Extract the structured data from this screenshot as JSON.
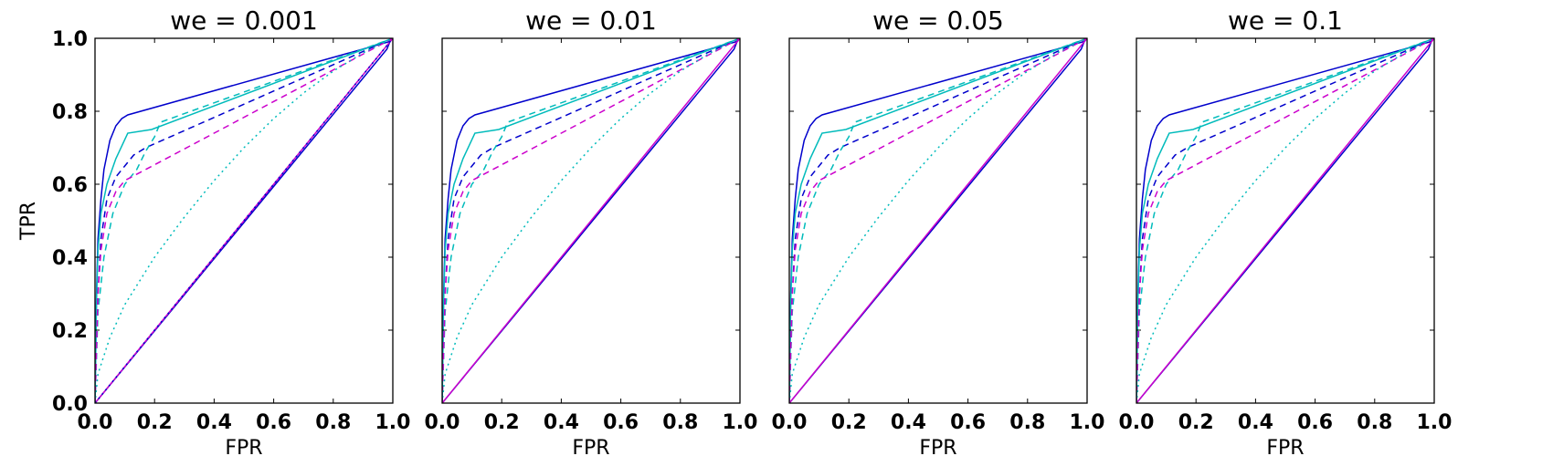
{
  "chart_data": [
    {
      "type": "line",
      "title": "we = 0.001",
      "xlabel": "FPR",
      "ylabel": "TPR",
      "xlim": [
        0.0,
        1.0
      ],
      "ylim": [
        0.0,
        1.0
      ],
      "xticks": [
        "0.0",
        "0.2",
        "0.4",
        "0.6",
        "0.8",
        "1.0"
      ],
      "yticks": [
        "0.0",
        "0.2",
        "0.4",
        "0.6",
        "0.8",
        "1.0"
      ],
      "series": [
        {
          "color": "#0000cc",
          "style": "solid",
          "x": [
            0,
            0.005,
            0.01,
            0.02,
            0.03,
            0.05,
            0.07,
            0.09,
            0.11,
            0.985,
            1.0
          ],
          "y": [
            0,
            0.3,
            0.45,
            0.56,
            0.64,
            0.72,
            0.76,
            0.78,
            0.79,
            0.99,
            1.0
          ]
        },
        {
          "color": "#0000cc",
          "style": "solid",
          "x": [
            0,
            0.98,
            0.99,
            1.0
          ],
          "y": [
            0,
            0.97,
            0.99,
            1.0
          ]
        },
        {
          "color": "#00bbbb",
          "style": "solid",
          "x": [
            0,
            0.005,
            0.01,
            0.02,
            0.04,
            0.07,
            0.11,
            0.19,
            1.0
          ],
          "y": [
            0,
            0.28,
            0.42,
            0.52,
            0.6,
            0.67,
            0.74,
            0.75,
            1.0
          ]
        },
        {
          "color": "#0000cc",
          "style": "dashed",
          "x": [
            0,
            0.01,
            0.02,
            0.04,
            0.07,
            0.1,
            0.13,
            0.17,
            1.0
          ],
          "y": [
            0,
            0.3,
            0.45,
            0.56,
            0.62,
            0.65,
            0.68,
            0.7,
            1.0
          ]
        },
        {
          "color": "#00bbbb",
          "style": "dashed",
          "x": [
            0,
            0.01,
            0.03,
            0.06,
            0.1,
            0.14,
            0.17,
            0.2,
            0.22,
            1.0
          ],
          "y": [
            0,
            0.25,
            0.4,
            0.52,
            0.6,
            0.64,
            0.69,
            0.73,
            0.77,
            1.0
          ]
        },
        {
          "color": "#cc00cc",
          "style": "dashed",
          "x": [
            0,
            0.01,
            0.02,
            0.04,
            0.07,
            0.1,
            1.0
          ],
          "y": [
            0,
            0.3,
            0.42,
            0.52,
            0.58,
            0.61,
            1.0
          ]
        },
        {
          "color": "#00bbbb",
          "style": "dotted",
          "x": [
            0,
            0.01,
            0.05,
            0.1,
            0.2,
            0.3,
            0.4,
            0.5,
            0.6,
            0.7,
            0.8,
            0.9,
            1.0
          ],
          "y": [
            0,
            0.08,
            0.18,
            0.27,
            0.4,
            0.51,
            0.61,
            0.7,
            0.78,
            0.85,
            0.91,
            0.96,
            1.0
          ]
        },
        {
          "color": "#cc00cc",
          "style": "solid",
          "x": [
            0,
            1.0
          ],
          "y": [
            0,
            1.0
          ]
        },
        {
          "color": "#0000cc",
          "style": "dotted",
          "x": [
            0,
            1.0
          ],
          "y": [
            0,
            1.0
          ]
        }
      ]
    },
    {
      "type": "line",
      "title": "we = 0.01",
      "xlabel": "FPR",
      "ylabel": "",
      "xlim": [
        0.0,
        1.0
      ],
      "ylim": [
        0.0,
        1.0
      ],
      "xticks": [
        "0.0",
        "0.2",
        "0.4",
        "0.6",
        "0.8",
        "1.0"
      ],
      "yticks": [],
      "series": [
        {
          "color": "#0000cc",
          "style": "solid",
          "x": [
            0,
            0.005,
            0.01,
            0.02,
            0.03,
            0.05,
            0.07,
            0.09,
            0.11,
            0.985,
            1.0
          ],
          "y": [
            0,
            0.3,
            0.45,
            0.56,
            0.64,
            0.72,
            0.76,
            0.78,
            0.79,
            0.99,
            1.0
          ]
        },
        {
          "color": "#0000cc",
          "style": "solid",
          "x": [
            0,
            0.98,
            0.99,
            1.0
          ],
          "y": [
            0,
            0.97,
            0.99,
            1.0
          ]
        },
        {
          "color": "#00bbbb",
          "style": "solid",
          "x": [
            0,
            0.005,
            0.01,
            0.02,
            0.04,
            0.07,
            0.11,
            0.19,
            1.0
          ],
          "y": [
            0,
            0.28,
            0.42,
            0.52,
            0.6,
            0.67,
            0.74,
            0.75,
            1.0
          ]
        },
        {
          "color": "#0000cc",
          "style": "dashed",
          "x": [
            0,
            0.01,
            0.02,
            0.04,
            0.07,
            0.1,
            0.13,
            0.17,
            1.0
          ],
          "y": [
            0,
            0.3,
            0.45,
            0.56,
            0.62,
            0.65,
            0.68,
            0.7,
            1.0
          ]
        },
        {
          "color": "#00bbbb",
          "style": "dashed",
          "x": [
            0,
            0.01,
            0.03,
            0.06,
            0.1,
            0.14,
            0.17,
            0.2,
            0.22,
            1.0
          ],
          "y": [
            0,
            0.25,
            0.4,
            0.52,
            0.6,
            0.64,
            0.69,
            0.73,
            0.77,
            1.0
          ]
        },
        {
          "color": "#cc00cc",
          "style": "dashed",
          "x": [
            0,
            0.01,
            0.02,
            0.04,
            0.07,
            0.1,
            1.0
          ],
          "y": [
            0,
            0.3,
            0.42,
            0.52,
            0.58,
            0.61,
            1.0
          ]
        },
        {
          "color": "#00bbbb",
          "style": "dotted",
          "x": [
            0,
            0.01,
            0.05,
            0.1,
            0.2,
            0.3,
            0.4,
            0.5,
            0.6,
            0.7,
            0.8,
            0.9,
            1.0
          ],
          "y": [
            0,
            0.08,
            0.18,
            0.27,
            0.4,
            0.51,
            0.61,
            0.7,
            0.78,
            0.85,
            0.91,
            0.96,
            1.0
          ]
        },
        {
          "color": "#cc00cc",
          "style": "solid",
          "x": [
            0,
            1.0
          ],
          "y": [
            0,
            1.0
          ]
        }
      ]
    },
    {
      "type": "line",
      "title": "we = 0.05",
      "xlabel": "FPR",
      "ylabel": "",
      "xlim": [
        0.0,
        1.0
      ],
      "ylim": [
        0.0,
        1.0
      ],
      "xticks": [
        "0.0",
        "0.2",
        "0.4",
        "0.6",
        "0.8",
        "1.0"
      ],
      "yticks": [],
      "series": [
        {
          "color": "#0000cc",
          "style": "solid",
          "x": [
            0,
            0.005,
            0.01,
            0.02,
            0.03,
            0.05,
            0.07,
            0.09,
            0.11,
            0.985,
            1.0
          ],
          "y": [
            0,
            0.3,
            0.45,
            0.56,
            0.64,
            0.72,
            0.76,
            0.78,
            0.79,
            0.99,
            1.0
          ]
        },
        {
          "color": "#0000cc",
          "style": "solid",
          "x": [
            0,
            0.98,
            0.99,
            1.0
          ],
          "y": [
            0,
            0.97,
            0.99,
            1.0
          ]
        },
        {
          "color": "#00bbbb",
          "style": "solid",
          "x": [
            0,
            0.005,
            0.01,
            0.02,
            0.04,
            0.07,
            0.11,
            0.19,
            1.0
          ],
          "y": [
            0,
            0.28,
            0.42,
            0.52,
            0.6,
            0.67,
            0.74,
            0.75,
            1.0
          ]
        },
        {
          "color": "#0000cc",
          "style": "dashed",
          "x": [
            0,
            0.01,
            0.02,
            0.04,
            0.07,
            0.1,
            0.13,
            0.17,
            1.0
          ],
          "y": [
            0,
            0.3,
            0.45,
            0.56,
            0.62,
            0.65,
            0.68,
            0.7,
            1.0
          ]
        },
        {
          "color": "#00bbbb",
          "style": "dashed",
          "x": [
            0,
            0.01,
            0.03,
            0.06,
            0.1,
            0.14,
            0.17,
            0.2,
            0.22,
            1.0
          ],
          "y": [
            0,
            0.25,
            0.4,
            0.52,
            0.6,
            0.64,
            0.69,
            0.73,
            0.77,
            1.0
          ]
        },
        {
          "color": "#cc00cc",
          "style": "dashed",
          "x": [
            0,
            0.01,
            0.02,
            0.04,
            0.07,
            0.1,
            1.0
          ],
          "y": [
            0,
            0.3,
            0.42,
            0.52,
            0.58,
            0.61,
            1.0
          ]
        },
        {
          "color": "#00bbbb",
          "style": "dotted",
          "x": [
            0,
            0.01,
            0.05,
            0.1,
            0.2,
            0.3,
            0.4,
            0.5,
            0.6,
            0.7,
            0.8,
            0.9,
            1.0
          ],
          "y": [
            0,
            0.08,
            0.18,
            0.27,
            0.4,
            0.51,
            0.61,
            0.7,
            0.78,
            0.85,
            0.91,
            0.96,
            1.0
          ]
        },
        {
          "color": "#cc00cc",
          "style": "solid",
          "x": [
            0,
            1.0
          ],
          "y": [
            0,
            1.0
          ]
        }
      ]
    },
    {
      "type": "line",
      "title": "we = 0.1",
      "xlabel": "FPR",
      "ylabel": "",
      "xlim": [
        0.0,
        1.0
      ],
      "ylim": [
        0.0,
        1.0
      ],
      "xticks": [
        "0.0",
        "0.2",
        "0.4",
        "0.6",
        "0.8",
        "1.0"
      ],
      "yticks": [],
      "series": [
        {
          "color": "#0000cc",
          "style": "solid",
          "x": [
            0,
            0.005,
            0.01,
            0.02,
            0.03,
            0.05,
            0.07,
            0.09,
            0.11,
            0.985,
            1.0
          ],
          "y": [
            0,
            0.3,
            0.45,
            0.56,
            0.64,
            0.72,
            0.76,
            0.78,
            0.79,
            0.99,
            1.0
          ]
        },
        {
          "color": "#0000cc",
          "style": "solid",
          "x": [
            0,
            0.98,
            0.99,
            1.0
          ],
          "y": [
            0,
            0.97,
            0.99,
            1.0
          ]
        },
        {
          "color": "#00bbbb",
          "style": "solid",
          "x": [
            0,
            0.005,
            0.01,
            0.02,
            0.04,
            0.07,
            0.11,
            0.19,
            1.0
          ],
          "y": [
            0,
            0.28,
            0.42,
            0.52,
            0.6,
            0.67,
            0.74,
            0.75,
            1.0
          ]
        },
        {
          "color": "#0000cc",
          "style": "dashed",
          "x": [
            0,
            0.01,
            0.02,
            0.04,
            0.07,
            0.1,
            0.13,
            0.17,
            1.0
          ],
          "y": [
            0,
            0.3,
            0.45,
            0.56,
            0.62,
            0.65,
            0.68,
            0.7,
            1.0
          ]
        },
        {
          "color": "#00bbbb",
          "style": "dashed",
          "x": [
            0,
            0.01,
            0.03,
            0.06,
            0.1,
            0.14,
            0.17,
            0.2,
            0.22,
            1.0
          ],
          "y": [
            0,
            0.25,
            0.4,
            0.52,
            0.6,
            0.64,
            0.69,
            0.73,
            0.77,
            1.0
          ]
        },
        {
          "color": "#cc00cc",
          "style": "dashed",
          "x": [
            0,
            0.01,
            0.02,
            0.04,
            0.07,
            0.1,
            1.0
          ],
          "y": [
            0,
            0.3,
            0.42,
            0.52,
            0.58,
            0.61,
            1.0
          ]
        },
        {
          "color": "#00bbbb",
          "style": "dotted",
          "x": [
            0,
            0.01,
            0.05,
            0.1,
            0.2,
            0.3,
            0.4,
            0.5,
            0.6,
            0.7,
            0.8,
            0.9,
            1.0
          ],
          "y": [
            0,
            0.08,
            0.18,
            0.27,
            0.4,
            0.51,
            0.61,
            0.7,
            0.78,
            0.85,
            0.91,
            0.96,
            1.0
          ]
        },
        {
          "color": "#cc00cc",
          "style": "solid",
          "x": [
            0,
            1.0
          ],
          "y": [
            0,
            1.0
          ]
        }
      ]
    }
  ]
}
